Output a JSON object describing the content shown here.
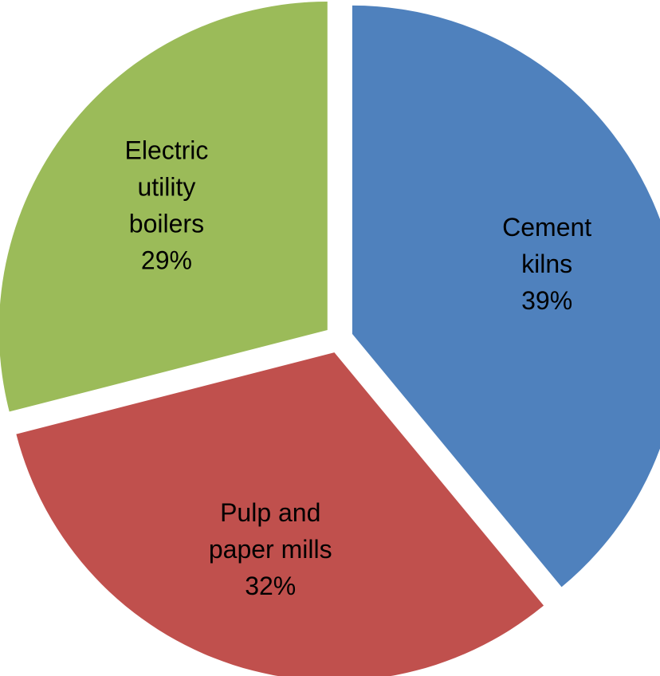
{
  "chart_data": {
    "type": "pie",
    "exploded": true,
    "legend": "none",
    "slices": [
      {
        "name": "Cement kilns",
        "label_lines": [
          "Cement",
          "kilns"
        ],
        "value": 39,
        "percent_label": "39%",
        "color": "#4F81BD"
      },
      {
        "name": "Pulp and paper mills",
        "label_lines": [
          "Pulp and",
          "paper mills"
        ],
        "value": 32,
        "percent_label": "32%",
        "color": "#C0504D"
      },
      {
        "name": "Electric utility boilers",
        "label_lines": [
          "Electric",
          "utility",
          "boilers"
        ],
        "value": 29,
        "percent_label": "29%",
        "color": "#9BBB59"
      }
    ]
  }
}
